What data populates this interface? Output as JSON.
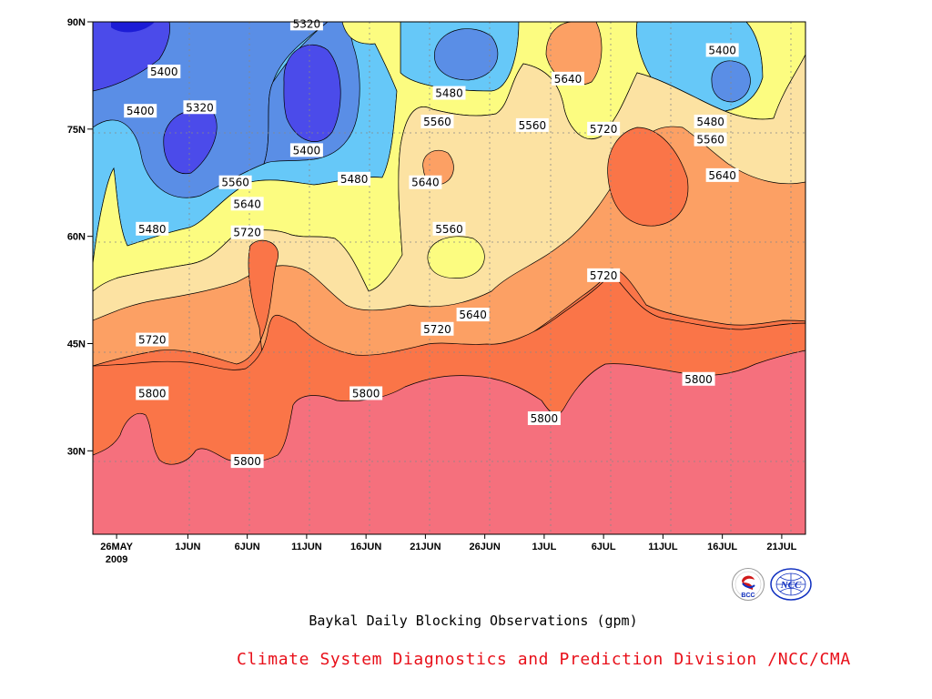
{
  "chart_data": {
    "type": "heatmap",
    "subtype": "filled-contour",
    "title": "Baykal Daily Blocking Observations (gpm)",
    "y_ticks": [
      "30N",
      "45N",
      "60N",
      "75N",
      "90N"
    ],
    "x_ticks": [
      "26MAY",
      "1JUN",
      "6JUN",
      "11JUN",
      "16JUN",
      "21JUN",
      "26JUN",
      "1JUL",
      "6JUL",
      "11JUL",
      "16JUL",
      "21JUL"
    ],
    "x_year": "2009",
    "contour_levels": [
      5320,
      5400,
      5480,
      5560,
      5640,
      5720,
      5800
    ],
    "fill_colors": [
      "#1c1cd6",
      "#4b4bea",
      "#5a8ee6",
      "#66c8f8",
      "#fcfc80",
      "#fce2a2",
      "#fca064",
      "#fa7548",
      "#f5707d"
    ],
    "grid": true,
    "contour_labels": [
      {
        "text": "5320",
        "date": "11JUN",
        "lat": 89.7
      },
      {
        "text": "5400",
        "date": "30MAY",
        "lat": 83
      },
      {
        "text": "5400",
        "date": "28MAY",
        "lat": 77.5
      },
      {
        "text": "5320",
        "date": "2JUN",
        "lat": 78
      },
      {
        "text": "5400",
        "date": "11JUN",
        "lat": 72
      },
      {
        "text": "5480",
        "date": "15JUN",
        "lat": 68
      },
      {
        "text": "5560",
        "date": "5JUN",
        "lat": 67.5
      },
      {
        "text": "5640",
        "date": "6JUN",
        "lat": 64.5
      },
      {
        "text": "5720",
        "date": "6JUN",
        "lat": 60.5
      },
      {
        "text": "5480",
        "date": "29MAY",
        "lat": 61
      },
      {
        "text": "5480",
        "date": "23JUN",
        "lat": 80
      },
      {
        "text": "5560",
        "date": "22JUN",
        "lat": 76
      },
      {
        "text": "5640",
        "date": "21JUN",
        "lat": 67.5
      },
      {
        "text": "5560",
        "date": "23JUN",
        "lat": 61
      },
      {
        "text": "5640",
        "date": "25JUN",
        "lat": 49
      },
      {
        "text": "5720",
        "date": "22JUN",
        "lat": 47
      },
      {
        "text": "5560",
        "date": "30JUN",
        "lat": 75.5
      },
      {
        "text": "5640",
        "date": "3JUL",
        "lat": 82
      },
      {
        "text": "5720",
        "date": "6JUL",
        "lat": 75
      },
      {
        "text": "5720",
        "date": "6JUL",
        "lat": 54.5
      },
      {
        "text": "5400",
        "date": "16JUL",
        "lat": 86
      },
      {
        "text": "5480",
        "date": "15JUL",
        "lat": 76
      },
      {
        "text": "5560",
        "date": "15JUL",
        "lat": 73.5
      },
      {
        "text": "5640",
        "date": "16JUL",
        "lat": 68.5
      },
      {
        "text": "5720",
        "date": "29MAY",
        "lat": 45.5
      },
      {
        "text": "5800",
        "date": "29MAY",
        "lat": 38
      },
      {
        "text": "5800",
        "date": "6JUN",
        "lat": 28.5
      },
      {
        "text": "5800",
        "date": "16JUN",
        "lat": 38
      },
      {
        "text": "5800",
        "date": "1JUL",
        "lat": 34.5
      },
      {
        "text": "5800",
        "date": "14JUL",
        "lat": 40
      }
    ]
  },
  "credit": "Climate System Diagnostics and Prediction Division /NCC/CMA",
  "logos": [
    {
      "name": "bcc-logo",
      "text": "BCC",
      "color": "#d01818"
    },
    {
      "name": "ncc-logo",
      "text": "NCC",
      "color": "#1030c0"
    }
  ]
}
